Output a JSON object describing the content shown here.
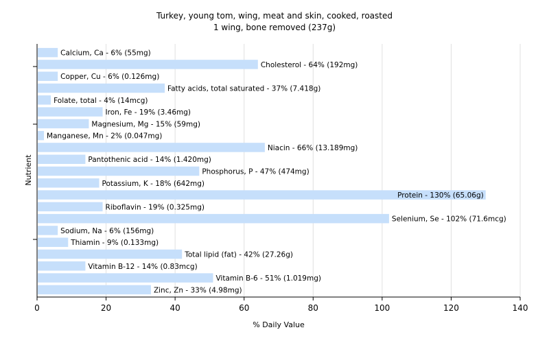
{
  "chart_data": {
    "type": "bar",
    "orientation": "horizontal",
    "title": "Turkey, young tom, wing, meat and skin, cooked, roasted",
    "subtitle": "1 wing, bone removed (237g)",
    "xlabel": "% Daily Value",
    "ylabel": "Nutrient",
    "xlim": [
      0,
      140
    ],
    "xticks": [
      0,
      20,
      40,
      60,
      80,
      100,
      120,
      140
    ],
    "grid": true,
    "bar_color": "#c6dffb",
    "gridline_color": "#e0e0e0",
    "categories": [
      "Calcium, Ca",
      "Cholesterol",
      "Copper, Cu",
      "Fatty acids, total saturated",
      "Folate, total",
      "Iron, Fe",
      "Magnesium, Mg",
      "Manganese, Mn",
      "Niacin",
      "Pantothenic acid",
      "Phosphorus, P",
      "Potassium, K",
      "Protein",
      "Riboflavin",
      "Selenium, Se",
      "Sodium, Na",
      "Thiamin",
      "Total lipid (fat)",
      "Vitamin B-12",
      "Vitamin B-6",
      "Zinc, Zn"
    ],
    "values": [
      6,
      64,
      6,
      37,
      4,
      19,
      15,
      2,
      66,
      14,
      47,
      18,
      130,
      19,
      102,
      6,
      9,
      42,
      14,
      51,
      33
    ],
    "labels": [
      "Calcium, Ca - 6% (55mg)",
      "Cholesterol - 64% (192mg)",
      "Copper, Cu - 6% (0.126mg)",
      "Fatty acids, total saturated - 37% (7.418g)",
      "Folate, total - 4% (14mcg)",
      "Iron, Fe - 19% (3.46mg)",
      "Magnesium, Mg - 15% (59mg)",
      "Manganese, Mn - 2% (0.047mg)",
      "Niacin - 66% (13.189mg)",
      "Pantothenic acid - 14% (1.420mg)",
      "Phosphorus, P - 47% (474mg)",
      "Potassium, K - 18% (642mg)",
      "Protein - 130% (65.06g)",
      "Riboflavin - 19% (0.325mg)",
      "Selenium, Se - 102% (71.6mcg)",
      "Sodium, Na - 6% (156mg)",
      "Thiamin - 9% (0.133mg)",
      "Total lipid (fat) - 42% (27.26g)",
      "Vitamin B-12 - 14% (0.83mcg)",
      "Vitamin B-6 - 51% (1.019mg)",
      "Zinc, Zn - 33% (4.98mg)"
    ]
  }
}
